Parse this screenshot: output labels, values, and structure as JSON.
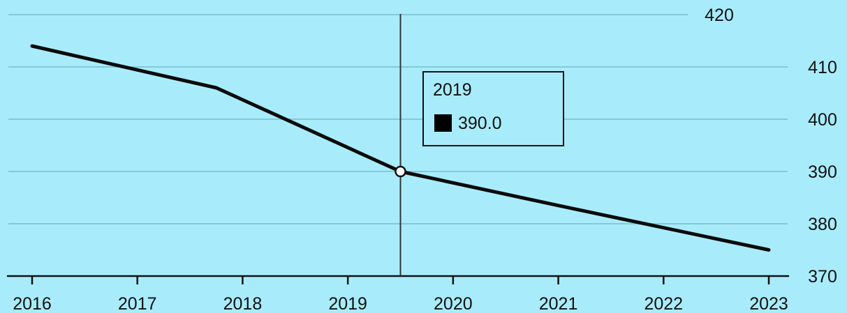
{
  "chart_data": {
    "type": "line",
    "title": "",
    "xlabel": "",
    "ylabel": "",
    "x_ticks": [
      "2016",
      "2017",
      "2018",
      "2019",
      "2020",
      "2021",
      "2022",
      "2023"
    ],
    "y_ticks": [
      "370",
      "380",
      "390",
      "400",
      "410",
      "420"
    ],
    "ylim": [
      370,
      420
    ],
    "xlim": [
      2016,
      2023
    ],
    "y_axis_position": "right",
    "grid": true,
    "series": [
      {
        "color": "#0b0b0b",
        "points": [
          {
            "x": 2016.0,
            "y": 414.0
          },
          {
            "x": 2017.75,
            "y": 406.0
          },
          {
            "x": 2019.5,
            "y": 390.0
          },
          {
            "x": 2021.0,
            "y": 383.5
          },
          {
            "x": 2023.0,
            "y": 375.0
          }
        ]
      }
    ],
    "crosshair": {
      "x": 2019.5,
      "y": 390.0
    },
    "tooltip": {
      "label": "2019",
      "value": "390.0"
    },
    "colors": {
      "background": "#a8ecfb",
      "gridline": "#84c9d8",
      "line": "#0b0b0b"
    }
  }
}
